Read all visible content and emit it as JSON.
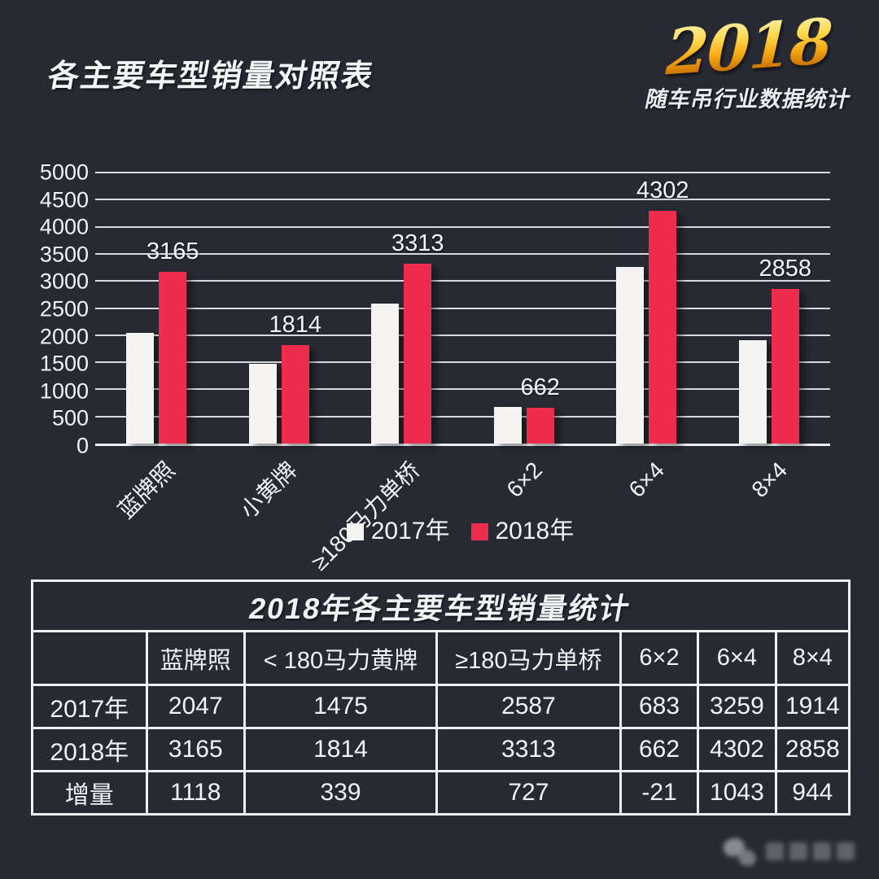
{
  "page": {
    "title": "各主要车型销量对照表",
    "logo_year": "2018",
    "logo_subtitle": "随车吊行业数据统计"
  },
  "colors": {
    "background": "#272a33",
    "bar_2017": "#f5f4f2",
    "bar_2018": "#ed2c4e",
    "gridline": "#f0f2f6",
    "gold_logo": "#f6a912"
  },
  "chart_data": {
    "type": "bar",
    "title": "各主要车型销量对照表",
    "categories": [
      "蓝牌照",
      "小黄牌",
      "≥180马力单桥",
      "6×2",
      "6×4",
      "8×4"
    ],
    "series": [
      {
        "name": "2017年",
        "color": "#f5f4f2",
        "values": [
          2047,
          1475,
          2587,
          683,
          3259,
          1914
        ],
        "show_labels": false
      },
      {
        "name": "2018年",
        "color": "#ed2c4e",
        "values": [
          3165,
          1814,
          3313,
          662,
          4302,
          2858
        ],
        "show_labels": true
      }
    ],
    "xlabel": "",
    "ylabel": "",
    "ylim": [
      0,
      5000
    ],
    "ytick_step": 500,
    "grid": true,
    "legend_position": "bottom"
  },
  "table": {
    "title": "2018年各主要车型销量统计",
    "columns": [
      "",
      "蓝牌照",
      "< 180马力黄牌",
      "≥180马力单桥",
      "6×2",
      "6×4",
      "8×4"
    ],
    "rows": [
      {
        "label": "2017年",
        "values": [
          "2047",
          "1475",
          "2587",
          "683",
          "3259",
          "1914"
        ]
      },
      {
        "label": "2018年",
        "values": [
          "3165",
          "1814",
          "3313",
          "662",
          "4302",
          "2858"
        ]
      },
      {
        "label": "增量",
        "values": [
          "1118",
          "339",
          "727",
          "-21",
          "1043",
          "944"
        ]
      }
    ]
  }
}
